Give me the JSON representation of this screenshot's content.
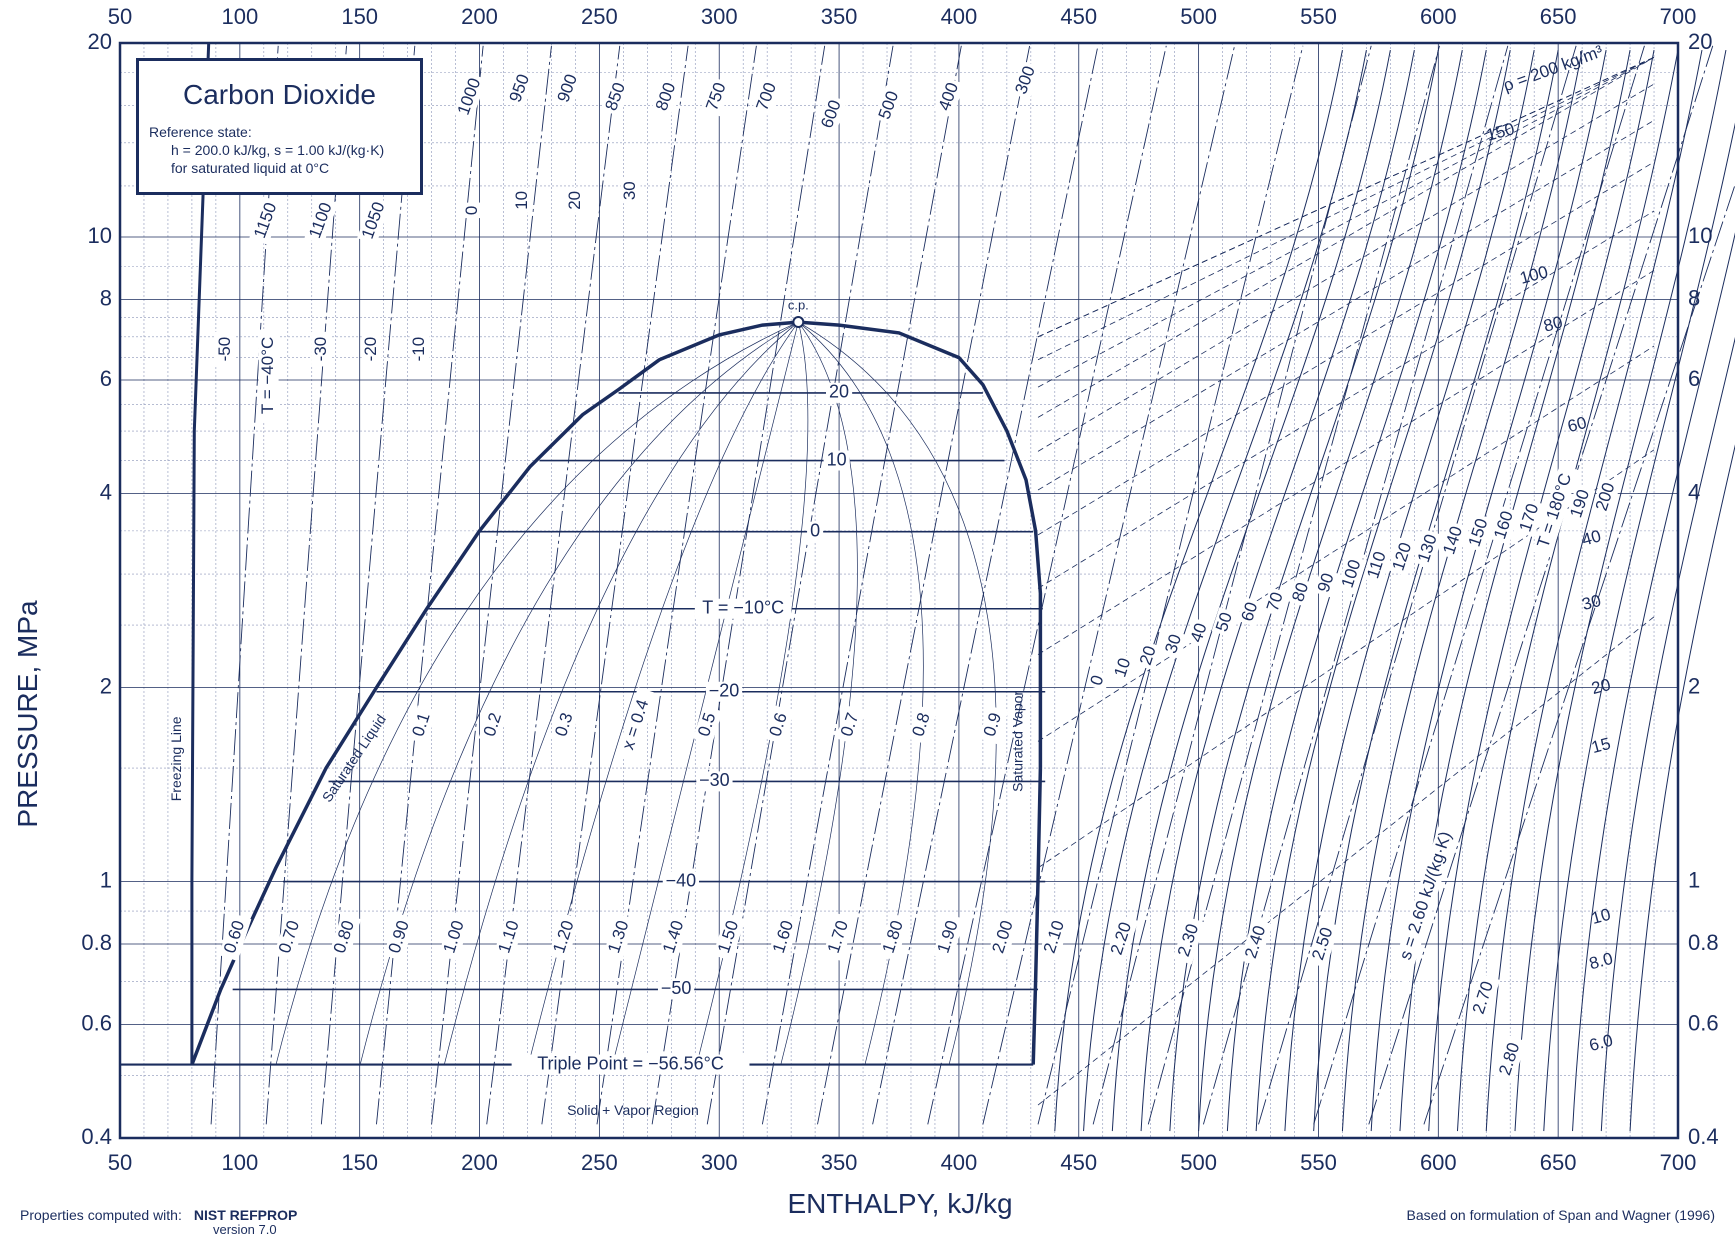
{
  "chart_data": {
    "type": "line",
    "title": "Carbon Dioxide",
    "reference_state": {
      "label": "Reference state:",
      "line1": "h = 200.0 kJ/kg,   s = 1.00 kJ/(kg·K)",
      "line2": "for saturated liquid at 0°C"
    },
    "xlabel": "ENTHALPY, kJ/kg",
    "ylabel": "PRESSURE, MPa",
    "xlim": [
      50,
      700
    ],
    "ylim": [
      0.4,
      20
    ],
    "yscale": "log",
    "x_ticks": [
      "50",
      "100",
      "150",
      "200",
      "250",
      "300",
      "350",
      "400",
      "450",
      "500",
      "550",
      "600",
      "650",
      "700"
    ],
    "y_ticks": [
      {
        "value": 0.4,
        "label": "0.4"
      },
      {
        "value": 0.6,
        "label": "0.6"
      },
      {
        "value": 0.8,
        "label": "0.8"
      },
      {
        "value": 1,
        "label": "1"
      },
      {
        "value": 2,
        "label": "2"
      },
      {
        "value": 4,
        "label": "4"
      },
      {
        "value": 6,
        "label": "6"
      },
      {
        "value": 8,
        "label": "8"
      },
      {
        "value": 10,
        "label": "10"
      },
      {
        "value": 20,
        "label": "20"
      }
    ],
    "grid": true,
    "saturation_dome": {
      "liquid": [
        [
          80,
          0.52
        ],
        [
          92,
          0.68
        ],
        [
          103,
          0.84
        ],
        [
          115,
          1.05
        ],
        [
          136,
          1.5
        ],
        [
          157,
          2.0
        ],
        [
          178,
          2.65
        ],
        [
          200,
          3.5
        ],
        [
          221,
          4.4
        ],
        [
          243,
          5.3
        ],
        [
          258,
          5.8
        ],
        [
          275,
          6.45
        ],
        [
          300,
          7.05
        ],
        [
          318,
          7.3
        ],
        [
          333,
          7.38
        ]
      ],
      "vapor": [
        [
          333,
          7.38
        ],
        [
          350,
          7.3
        ],
        [
          375,
          7.1
        ],
        [
          400,
          6.5
        ],
        [
          410,
          5.9
        ],
        [
          420,
          5.0
        ],
        [
          428,
          4.2
        ],
        [
          432,
          3.5
        ],
        [
          434,
          2.8
        ],
        [
          434,
          2.0
        ],
        [
          434,
          1.5
        ],
        [
          433,
          1.0
        ],
        [
          432,
          0.7
        ],
        [
          431,
          0.52
        ]
      ],
      "critical_point": {
        "h": 333,
        "p": 7.38,
        "label": "c.p."
      },
      "liquid_label": "Saturated Liquid",
      "vapor_label": "Saturated Vapor"
    },
    "freezing_line": {
      "label": "Freezing Line",
      "points": [
        [
          80,
          0.52
        ],
        [
          80,
          1.0
        ],
        [
          81,
          5.0
        ],
        [
          84,
          10
        ],
        [
          87,
          20
        ]
      ]
    },
    "triple_point": {
      "p": 0.52,
      "h_from": 50,
      "h_to": 431,
      "label": "Triple Point = −56.56°C"
    },
    "region_label": "Solid + Vapor Region",
    "isotherms": [
      {
        "label": "20",
        "p": 5.73,
        "h_l": 258,
        "h_v": 410,
        "label_h": 350
      },
      {
        "label": "10",
        "p": 4.5,
        "h_l": 225,
        "h_v": 419,
        "label_h": 349
      },
      {
        "label": "0",
        "p": 3.49,
        "h_l": 200,
        "h_v": 431,
        "label_h": 340
      },
      {
        "label": "T = −10°C",
        "p": 2.65,
        "h_l": 178,
        "h_v": 435,
        "label_h": 310
      },
      {
        "label": "−20",
        "p": 1.97,
        "h_l": 157,
        "h_v": 436,
        "label_h": 302
      },
      {
        "label": "−30",
        "p": 1.43,
        "h_l": 137,
        "h_v": 436,
        "label_h": 298
      },
      {
        "label": "−40",
        "p": 1.0,
        "h_l": 118,
        "h_v": 436,
        "label_h": 284
      },
      {
        "label": "−50",
        "p": 0.68,
        "h_l": 97,
        "h_v": 433,
        "label_h": 282
      }
    ],
    "quality_lines": {
      "values": [
        0.1,
        0.2,
        0.3,
        0.4,
        0.5,
        0.6,
        0.7,
        0.8,
        0.9
      ],
      "labels": [
        "0.1",
        "0.2",
        "0.3",
        "x = 0.4",
        "0.5",
        "0.6",
        "0.7",
        "0.8",
        "0.9"
      ]
    },
    "entropy_lines": {
      "unit": "kJ/(kg·K)",
      "labels": [
        "0.60",
        "0.70",
        "0.80",
        "0.90",
        "1.00",
        "1.10",
        "1.20",
        "1.30",
        "1.40",
        "1.50",
        "1.60",
        "1.70",
        "1.80",
        "1.90",
        "2.00",
        "2.10",
        "2.20",
        "2.30",
        "2.40",
        "2.50",
        "s = 2.60 kJ/(kg·K)",
        "2.70",
        "2.80"
      ]
    },
    "density_labels": [
      "1150",
      "1100",
      "1050",
      "1000",
      "950",
      "900",
      "850",
      "800",
      "750",
      "700",
      "600",
      "500",
      "400",
      "300",
      "ρ = 200 kg/m³",
      "150",
      "100",
      "80",
      "60",
      "40",
      "30",
      "20",
      "15",
      "10",
      "8.0",
      "6.0"
    ],
    "liquid_temperature_labels": [
      "-50",
      "T = −40°C",
      "-30",
      "-20",
      "-10",
      "0",
      "10",
      "20",
      "30"
    ],
    "vapor_temperature_labels": [
      "0",
      "10",
      "20",
      "30",
      "40",
      "50",
      "60",
      "70",
      "80",
      "90",
      "100",
      "110",
      "120",
      "130",
      "140",
      "150",
      "160",
      "170",
      "T = 180°C",
      "190",
      "200"
    ]
  },
  "footer": {
    "computed_with_label": "Properties computed with:",
    "software": "NIST REFPROP",
    "version": "version 7.0",
    "formulation": "Based on formulation of Span and Wagner (1996)"
  },
  "colors": {
    "ink": "#1b2d5e",
    "grid": "#8a94b8",
    "background": "#ffffff"
  }
}
